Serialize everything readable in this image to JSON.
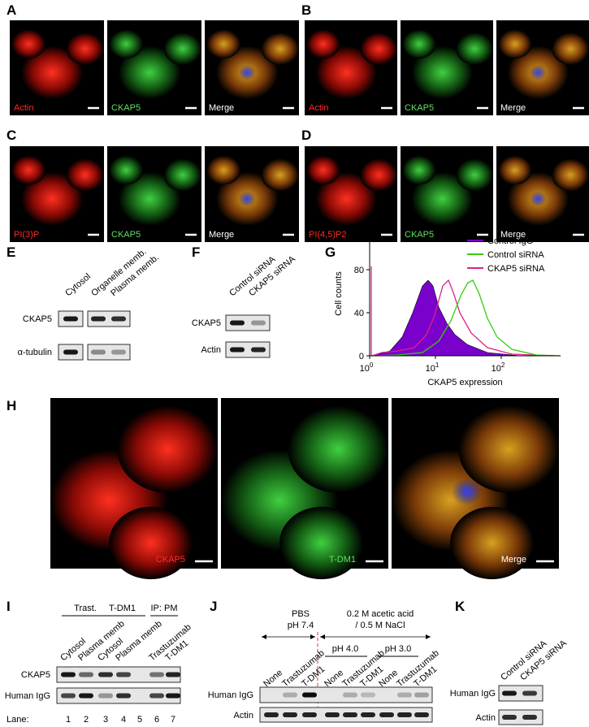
{
  "panels": {
    "A": {
      "label": "A",
      "channels": [
        "Actin",
        "CKAP5",
        "Merge"
      ]
    },
    "B": {
      "label": "B",
      "channels": [
        "Actin",
        "CKAP5",
        "Merge"
      ]
    },
    "C": {
      "label": "C",
      "channels": [
        "PI(3)P",
        "CKAP5",
        "Merge"
      ]
    },
    "D": {
      "label": "D",
      "channels": [
        "PI(4,5)P2",
        "CKAP5",
        "Merge"
      ]
    },
    "E": {
      "label": "E",
      "columns": [
        "Cytosol",
        "Organelle memb.",
        "Plasma memb."
      ],
      "rows": [
        "CKAP5",
        "α-tubulin"
      ]
    },
    "F": {
      "label": "F",
      "columns": [
        "Control siRNA",
        "CKAP5 siRNA"
      ],
      "rows": [
        "CKAP5",
        "Actin"
      ]
    },
    "G": {
      "label": "G",
      "y_label": "Cell counts",
      "x_label": "CKAP5 expression",
      "yticks": [
        "0",
        "40",
        "80"
      ],
      "xticks": [
        {
          "base": "10",
          "exp": "0"
        },
        {
          "base": "10",
          "exp": "1"
        },
        {
          "base": "10",
          "exp": "2"
        }
      ],
      "legend": [
        {
          "name": "Control IgG",
          "color": "#7a00cc"
        },
        {
          "name": "Control siRNA",
          "color": "#33cc11"
        },
        {
          "name": "CKAP5 siRNA",
          "color": "#e0208a"
        }
      ]
    },
    "H": {
      "label": "H",
      "channels": [
        "CKAP5",
        "T-DM1",
        "Merge"
      ]
    },
    "I": {
      "label": "I",
      "groups": [
        "Trast.",
        "T-DM1",
        "IP: PM"
      ],
      "columns": [
        "Cytosol",
        "Plasma memb",
        "Cytosol",
        "Plasma memb",
        "Trastuzumab",
        "T-DM1"
      ],
      "rows": [
        "CKAP5",
        "Human IgG"
      ],
      "lane_label": "Lane:",
      "lanes": [
        "1",
        "2",
        "3",
        "4",
        "5",
        "6",
        "7"
      ]
    },
    "J": {
      "label": "J",
      "header_left": [
        "PBS",
        "pH 7.4"
      ],
      "header_right": [
        "0.2 M acetic acid",
        "/ 0.5 M NaCl"
      ],
      "subgroups": [
        "pH 4.0",
        "pH 3.0"
      ],
      "columns": [
        "None",
        "Trastuzumab",
        "T-DM1",
        "None",
        "Trastuzumab",
        "T-DM1",
        "None",
        "Trastuzumab",
        "T-DM1"
      ],
      "rows": [
        "Human IgG",
        "Actin"
      ]
    },
    "K": {
      "label": "K",
      "columns": [
        "Control siRNA",
        "CKAP5 siRNA"
      ],
      "rows": [
        "Human IgG",
        "Actin"
      ]
    }
  }
}
